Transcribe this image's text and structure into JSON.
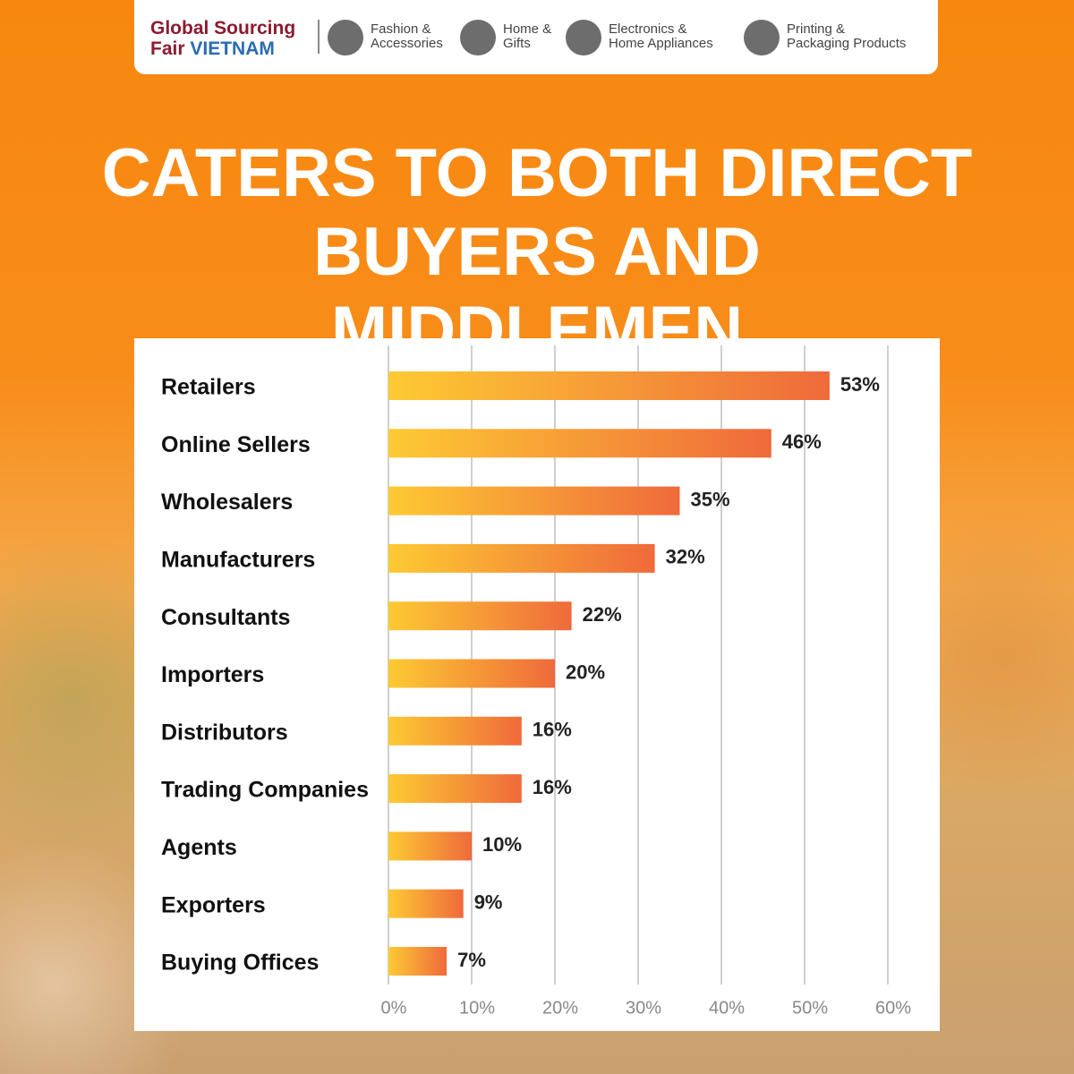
{
  "header": {
    "logo": [
      "Global Sourcing",
      "Fair",
      "VIETNAM"
    ],
    "categories": [
      [
        "Fashion &",
        "Accessories"
      ],
      [
        "Home &",
        "Gifts"
      ],
      [
        "Electronics &",
        "Home Appliances"
      ],
      [
        "Printing &",
        "Packaging Products"
      ]
    ]
  },
  "chart_data": {
    "type": "bar",
    "orientation": "horizontal",
    "title": "CATERS TO BOTH DIRECT BUYERS AND MIDDLEMEN",
    "categories": [
      "Retailers",
      "Online Sellers",
      "Wholesalers",
      "Manufacturers",
      "Consultants",
      "Importers",
      "Distributors",
      "Trading Companies",
      "Agents",
      "Exporters",
      "Buying Offices"
    ],
    "values": [
      53,
      46,
      35,
      32,
      22,
      20,
      16,
      16,
      10,
      9,
      7
    ],
    "value_labels": [
      "53%",
      "46%",
      "35%",
      "32%",
      "22%",
      "20%",
      "16%",
      "16%",
      "10%",
      "9%",
      "7%"
    ],
    "colors": [
      "#fdca33",
      "#ef6a3b"
    ],
    "xlim": [
      0,
      60
    ],
    "xticks": [
      {
        "value": 0,
        "label": "0%"
      },
      {
        "value": 10,
        "label": "10%"
      },
      {
        "value": 20,
        "label": "20%"
      },
      {
        "value": 30,
        "label": "30%"
      },
      {
        "value": 40,
        "label": "40%"
      },
      {
        "value": 50,
        "label": "50%"
      },
      {
        "value": 60,
        "label": "60%"
      }
    ],
    "grid": true
  }
}
